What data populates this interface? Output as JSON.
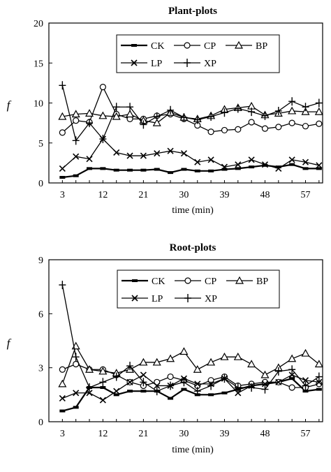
{
  "chart_data": [
    {
      "type": "line",
      "title": "Plant-plots",
      "xlabel": "time (min)",
      "ylabel": "f",
      "x": [
        3,
        6,
        9,
        12,
        15,
        18,
        21,
        24,
        27,
        30,
        33,
        36,
        39,
        42,
        45,
        48,
        51,
        54,
        57,
        60
      ],
      "xticks": [
        "3",
        "12",
        "21",
        "30",
        "39",
        "48",
        "57"
      ],
      "yticks": [
        "0",
        "5",
        "10",
        "15",
        "20"
      ],
      "xlim": [
        3,
        60
      ],
      "ylim": [
        0,
        20
      ],
      "legend": "top-right",
      "series": [
        {
          "name": "CK",
          "marker": "dash",
          "values": [
            0.7,
            0.9,
            1.8,
            1.8,
            1.6,
            1.6,
            1.6,
            1.7,
            1.3,
            1.7,
            1.5,
            1.5,
            1.7,
            1.8,
            2.0,
            2.2,
            2.0,
            2.3,
            1.8,
            1.8
          ]
        },
        {
          "name": "CP",
          "marker": "circle",
          "values": [
            6.3,
            7.8,
            7.6,
            12.0,
            8.6,
            8.0,
            8.0,
            8.4,
            8.6,
            8.0,
            7.2,
            6.4,
            6.6,
            6.7,
            7.6,
            6.8,
            7.0,
            7.5,
            7.1,
            7.4
          ]
        },
        {
          "name": "BP",
          "marker": "triangle",
          "values": [
            8.3,
            8.6,
            8.7,
            8.4,
            8.3,
            8.6,
            7.8,
            7.5,
            8.8,
            8.2,
            8.0,
            8.4,
            9.2,
            9.4,
            9.6,
            8.5,
            8.7,
            9.0,
            8.9,
            8.9
          ]
        },
        {
          "name": "LP",
          "marker": "x",
          "values": [
            1.8,
            3.3,
            3.0,
            5.5,
            3.8,
            3.4,
            3.4,
            3.7,
            4.0,
            3.7,
            2.6,
            2.9,
            2.0,
            2.3,
            2.9,
            2.3,
            1.8,
            2.9,
            2.6,
            2.2
          ]
        },
        {
          "name": "XP",
          "marker": "plus",
          "values": [
            12.2,
            5.3,
            7.5,
            5.5,
            9.5,
            9.5,
            7.3,
            8.3,
            9.1,
            8.2,
            7.9,
            8.3,
            8.8,
            9.3,
            8.9,
            8.4,
            9.0,
            10.2,
            9.5,
            10.0
          ]
        }
      ]
    },
    {
      "type": "line",
      "title": "Root-plots",
      "xlabel": "time (min)",
      "ylabel": "f",
      "x": [
        3,
        6,
        9,
        12,
        15,
        18,
        21,
        24,
        27,
        30,
        33,
        36,
        39,
        42,
        45,
        48,
        51,
        54,
        57,
        60
      ],
      "xticks": [
        "3",
        "12",
        "21",
        "30",
        "39",
        "48",
        "57"
      ],
      "yticks": [
        "0",
        "3",
        "6",
        "9"
      ],
      "xlim": [
        3,
        60
      ],
      "ylim": [
        0,
        9
      ],
      "legend": "top-right",
      "series": [
        {
          "name": "CK",
          "marker": "dash",
          "values": [
            0.6,
            0.8,
            1.9,
            1.9,
            1.5,
            1.7,
            1.7,
            1.7,
            1.3,
            1.8,
            1.5,
            1.5,
            1.6,
            1.8,
            2.0,
            2.1,
            2.2,
            2.4,
            1.7,
            1.8
          ]
        },
        {
          "name": "CP",
          "marker": "circle",
          "values": [
            2.9,
            3.2,
            2.9,
            2.9,
            2.6,
            2.2,
            2.0,
            2.2,
            2.5,
            2.3,
            2.0,
            2.3,
            2.5,
            2.0,
            2.1,
            2.2,
            2.2,
            1.9,
            1.9,
            2.1
          ]
        },
        {
          "name": "BP",
          "marker": "triangle",
          "values": [
            2.1,
            4.2,
            2.9,
            2.8,
            2.7,
            2.9,
            3.3,
            3.3,
            3.5,
            3.9,
            2.9,
            3.3,
            3.6,
            3.6,
            3.2,
            2.6,
            3.0,
            3.5,
            3.8,
            3.2
          ]
        },
        {
          "name": "LP",
          "marker": "x",
          "values": [
            1.3,
            1.6,
            1.6,
            1.2,
            1.7,
            2.2,
            2.6,
            2.0,
            2.0,
            2.4,
            2.1,
            2.1,
            2.4,
            1.6,
            2.0,
            2.1,
            2.2,
            2.6,
            2.3,
            2.2
          ]
        },
        {
          "name": "XP",
          "marker": "plus",
          "values": [
            7.6,
            3.6,
            1.9,
            2.2,
            2.5,
            3.1,
            2.2,
            1.7,
            2.0,
            2.2,
            1.7,
            2.0,
            2.4,
            1.9,
            1.9,
            1.8,
            2.8,
            2.9,
            2.0,
            2.5
          ]
        }
      ]
    }
  ]
}
